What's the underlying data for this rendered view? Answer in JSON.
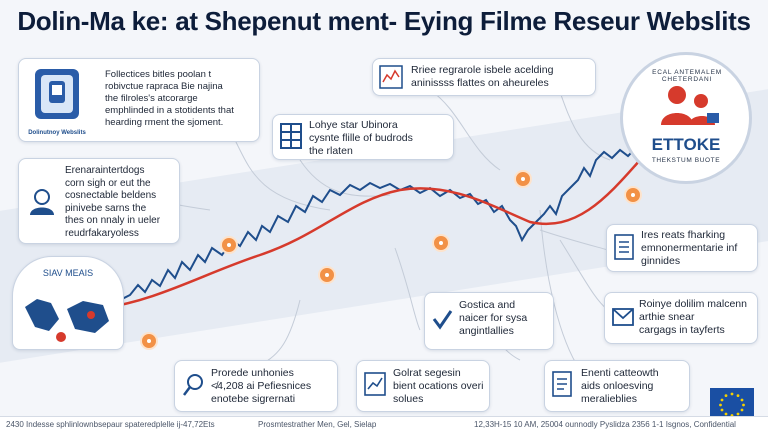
{
  "header": {
    "title": "Dolin-Ma ke: at Shepenut ment- Eying Filme Reseur Webslits"
  },
  "cards": {
    "c1": {
      "caption": "Dolinutnoy Webslits",
      "text": "Follectices bitles poolan t\nrobivctue rapraca Bie najina\nthe filroles's atcorarge\nemphlinded in a stotidents that\nhearding rment the sjoment."
    },
    "c2": {
      "text": "Lohye star Ubinora\ncysnte flille of budrods\nthe rlaten"
    },
    "c3": {
      "text": "Rriee regrarole isbele acelding\naninissss flattes on aheureles"
    },
    "c4": {
      "text": "Erenaraintertdogs\ncorn sigh or eut the\ncosnectable beldens\npinivebe sarns the\nthes on nnaly in ueler\nreudrfakaryoless"
    },
    "c5": {
      "text": "Ires reats fharking\nemnonermentarie inf\nginnides"
    },
    "c6": {
      "text": "Gostica and\nnaicer for sysa\nangintlallies"
    },
    "c7": {
      "text": "Roinye dolilim malcenn\narthie snear\ncargags in tayferts"
    },
    "c8": {
      "text": "Prorede unhonies\n≮4,208 ai Pefiesnices\nenotebe sigrernati"
    },
    "c9": {
      "text": "Golrat segesin\nbient ocations overi\nsolues"
    },
    "c10": {
      "text": "Enenti catteowth\naids onloesving\nmeralieblies"
    }
  },
  "badge": {
    "top_text": "ECAL ANTEMALEM CHETERDANI",
    "brand": "ETTOKE",
    "bottom_text": "THEKSTUM BUOTE"
  },
  "map": {
    "label": "SIAV MEAIS"
  },
  "footer": {
    "left": "2430 Indesse sphlinlownbsepaur spateredplelle ij-47,72Ets",
    "mid": "Prosmtestrather Men, Gel, Sielap",
    "right": "12,33H-15 10 AM, 25004 ounnodly Pyslidza 2356 1-1 Isgnos, Confidential"
  },
  "colors": {
    "accent_blue": "#1f4e8c",
    "accent_red": "#d63a2c",
    "accent_orange": "#f29146",
    "eu_blue": "#1a4fa3"
  }
}
